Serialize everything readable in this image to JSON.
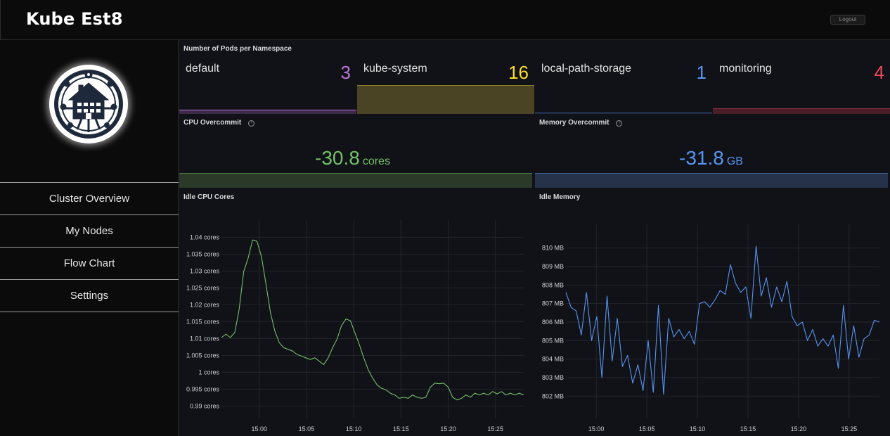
{
  "header": {
    "title": "Kube Est8",
    "logout_label": "Logout"
  },
  "sidebar": {
    "logo": "kube-est8-house-circuit-logo",
    "items": [
      {
        "label": "Cluster Overview"
      },
      {
        "label": "My Nodes"
      },
      {
        "label": "Flow Chart"
      },
      {
        "label": "Settings"
      }
    ]
  },
  "pods_panel": {
    "title": "Number of Pods per Namespace",
    "namespaces": [
      {
        "name": "default",
        "value": "3",
        "color": "#b877d9"
      },
      {
        "name": "kube-system",
        "value": "16",
        "color": "#fade2a"
      },
      {
        "name": "local-path-storage",
        "value": "1",
        "color": "#5794f2"
      },
      {
        "name": "monitoring",
        "value": "4",
        "color": "#f2495c"
      }
    ]
  },
  "cpu_overcommit": {
    "title": "CPU Overcommit",
    "value": "-30.8",
    "unit": "cores",
    "color": "#73bf69"
  },
  "memory_overcommit": {
    "title": "Memory Overcommit",
    "value": "-31.8",
    "unit": "GB",
    "color": "#5794f2"
  },
  "chart_data": [
    {
      "type": "line",
      "title": "Idle CPU Cores",
      "color": "#73bf69",
      "x_range": [
        "14:56",
        "15:28"
      ],
      "x_ticks": [
        "15:00",
        "15:05",
        "15:10",
        "15:15",
        "15:20",
        "15:25"
      ],
      "y_ticks": [
        "1.04 cores",
        "1.035 cores",
        "1.03 cores",
        "1.025 cores",
        "1.02 cores",
        "1.015 cores",
        "1.01 cores",
        "1.005 cores",
        "1 cores",
        "0.995 cores",
        "0.99 cores"
      ],
      "y_tick_values": [
        1.04,
        1.035,
        1.03,
        1.025,
        1.02,
        1.015,
        1.01,
        1.005,
        1.0,
        0.995,
        0.99
      ],
      "ylim": [
        0.988,
        1.043
      ],
      "series": [
        {
          "x": [
            "15:00",
            "15:00",
            "15:01",
            "15:01",
            "15:01",
            "15:01",
            "15:02",
            "15:02",
            "15:02",
            "15:02",
            "15:03",
            "15:03",
            "15:03",
            "15:04",
            "15:04",
            "15:05",
            "15:05",
            "15:06",
            "15:06",
            "15:06",
            "15:07",
            "15:07",
            "15:08",
            "15:08",
            "15:09",
            "15:09",
            "15:10",
            "15:10",
            "15:10",
            "15:10",
            "15:11",
            "15:11",
            "15:11",
            "15:12",
            "15:12",
            "15:13",
            "15:13",
            "15:14",
            "15:14",
            "15:15",
            "15:15",
            "15:15",
            "15:16",
            "15:16",
            "15:17",
            "15:17",
            "15:18",
            "15:18",
            "15:18",
            "15:19",
            "15:19",
            "15:20",
            "15:20",
            "15:20",
            "15:21",
            "15:21",
            "15:21",
            "15:22",
            "15:22",
            "15:23",
            "15:23",
            "15:24",
            "15:24",
            "15:25",
            "15:25",
            "15:26",
            "15:26",
            "15:27",
            "15:27"
          ],
          "y": [
            1.0103,
            1.0113,
            1.0103,
            1.0118,
            1.0188,
            1.0298,
            1.0338,
            1.0392,
            1.0388,
            1.0343,
            1.0263,
            1.0178,
            1.0123,
            1.0088,
            1.0073,
            1.0068,
            1.0063,
            1.0053,
            1.0048,
            1.0043,
            1.0038,
            1.0043,
            1.0033,
            1.0023,
            1.0043,
            1.0073,
            1.0098,
            1.0138,
            1.0158,
            1.0153,
            1.0118,
            1.0083,
            1.0043,
            1.0008,
            0.9983,
            0.9963,
            0.9953,
            0.9948,
            0.9938,
            0.9933,
            0.9923,
            0.9926,
            0.9923,
            0.9933,
            0.9926,
            0.9923,
            0.9926,
            0.9956,
            0.9968,
            0.9966,
            0.9968,
            0.9956,
            0.9926,
            0.9918,
            0.9923,
            0.9933,
            0.9926,
            0.9938,
            0.9933,
            0.9938,
            0.9933,
            0.9943,
            0.9936,
            0.9943,
            0.9933,
            0.9938,
            0.9933,
            0.9938,
            0.9933
          ]
        }
      ]
    },
    {
      "type": "line",
      "title": "Idle Memory",
      "color": "#5794f2",
      "x_range": [
        "14:57",
        "15:28"
      ],
      "x_ticks": [
        "15:00",
        "15:05",
        "15:10",
        "15:15",
        "15:20",
        "15:25"
      ],
      "y_ticks": [
        "810 MB",
        "809 MB",
        "808 MB",
        "807 MB",
        "806 MB",
        "805 MB",
        "804 MB",
        "803 MB",
        "802 MB"
      ],
      "y_tick_values": [
        810,
        809,
        808,
        807,
        806,
        805,
        804,
        803,
        802
      ],
      "ylim": [
        801.1,
        810.9
      ],
      "series": [
        {
          "x": [
            "14:57",
            "14:58",
            "14:58",
            "14:59",
            "14:59",
            "15:00",
            "15:00",
            "15:01",
            "15:01",
            "15:02",
            "15:02",
            "15:03",
            "15:03",
            "15:04",
            "15:04",
            "15:05",
            "15:05",
            "15:06",
            "15:06",
            "15:07",
            "15:07",
            "15:08",
            "15:08",
            "15:09",
            "15:09",
            "15:10",
            "15:10",
            "15:11",
            "15:11",
            "15:12",
            "15:12",
            "15:13",
            "15:13",
            "15:14",
            "15:14",
            "15:15",
            "15:15",
            "15:16",
            "15:16",
            "15:17",
            "15:17",
            "15:18",
            "15:18",
            "15:19",
            "15:19",
            "15:20",
            "15:20",
            "15:21",
            "15:21",
            "15:22",
            "15:22",
            "15:23",
            "15:23",
            "15:24",
            "15:24",
            "15:25",
            "15:25",
            "15:26",
            "15:26",
            "15:27",
            "15:27",
            "15:28"
          ],
          "y": [
            807.6,
            806.8,
            806.6,
            805.3,
            807.6,
            805.0,
            806.3,
            803.0,
            807.4,
            803.9,
            806.2,
            803.6,
            804.2,
            802.7,
            803.7,
            802.3,
            805.0,
            802.2,
            806.9,
            802.1,
            806.2,
            805.2,
            805.6,
            805.1,
            805.5,
            804.8,
            807.0,
            807.1,
            806.8,
            807.2,
            807.7,
            807.5,
            809.1,
            808.1,
            807.6,
            807.9,
            806.2,
            810.1,
            807.4,
            808.4,
            806.8,
            807.9,
            807.1,
            808.2,
            806.3,
            805.8,
            806.0,
            805.0,
            805.6,
            804.7,
            805.1,
            804.7,
            805.3,
            803.5,
            806.9,
            804.0,
            805.8,
            804.1,
            805.1,
            805.3,
            806.1,
            806.0
          ]
        }
      ]
    }
  ]
}
